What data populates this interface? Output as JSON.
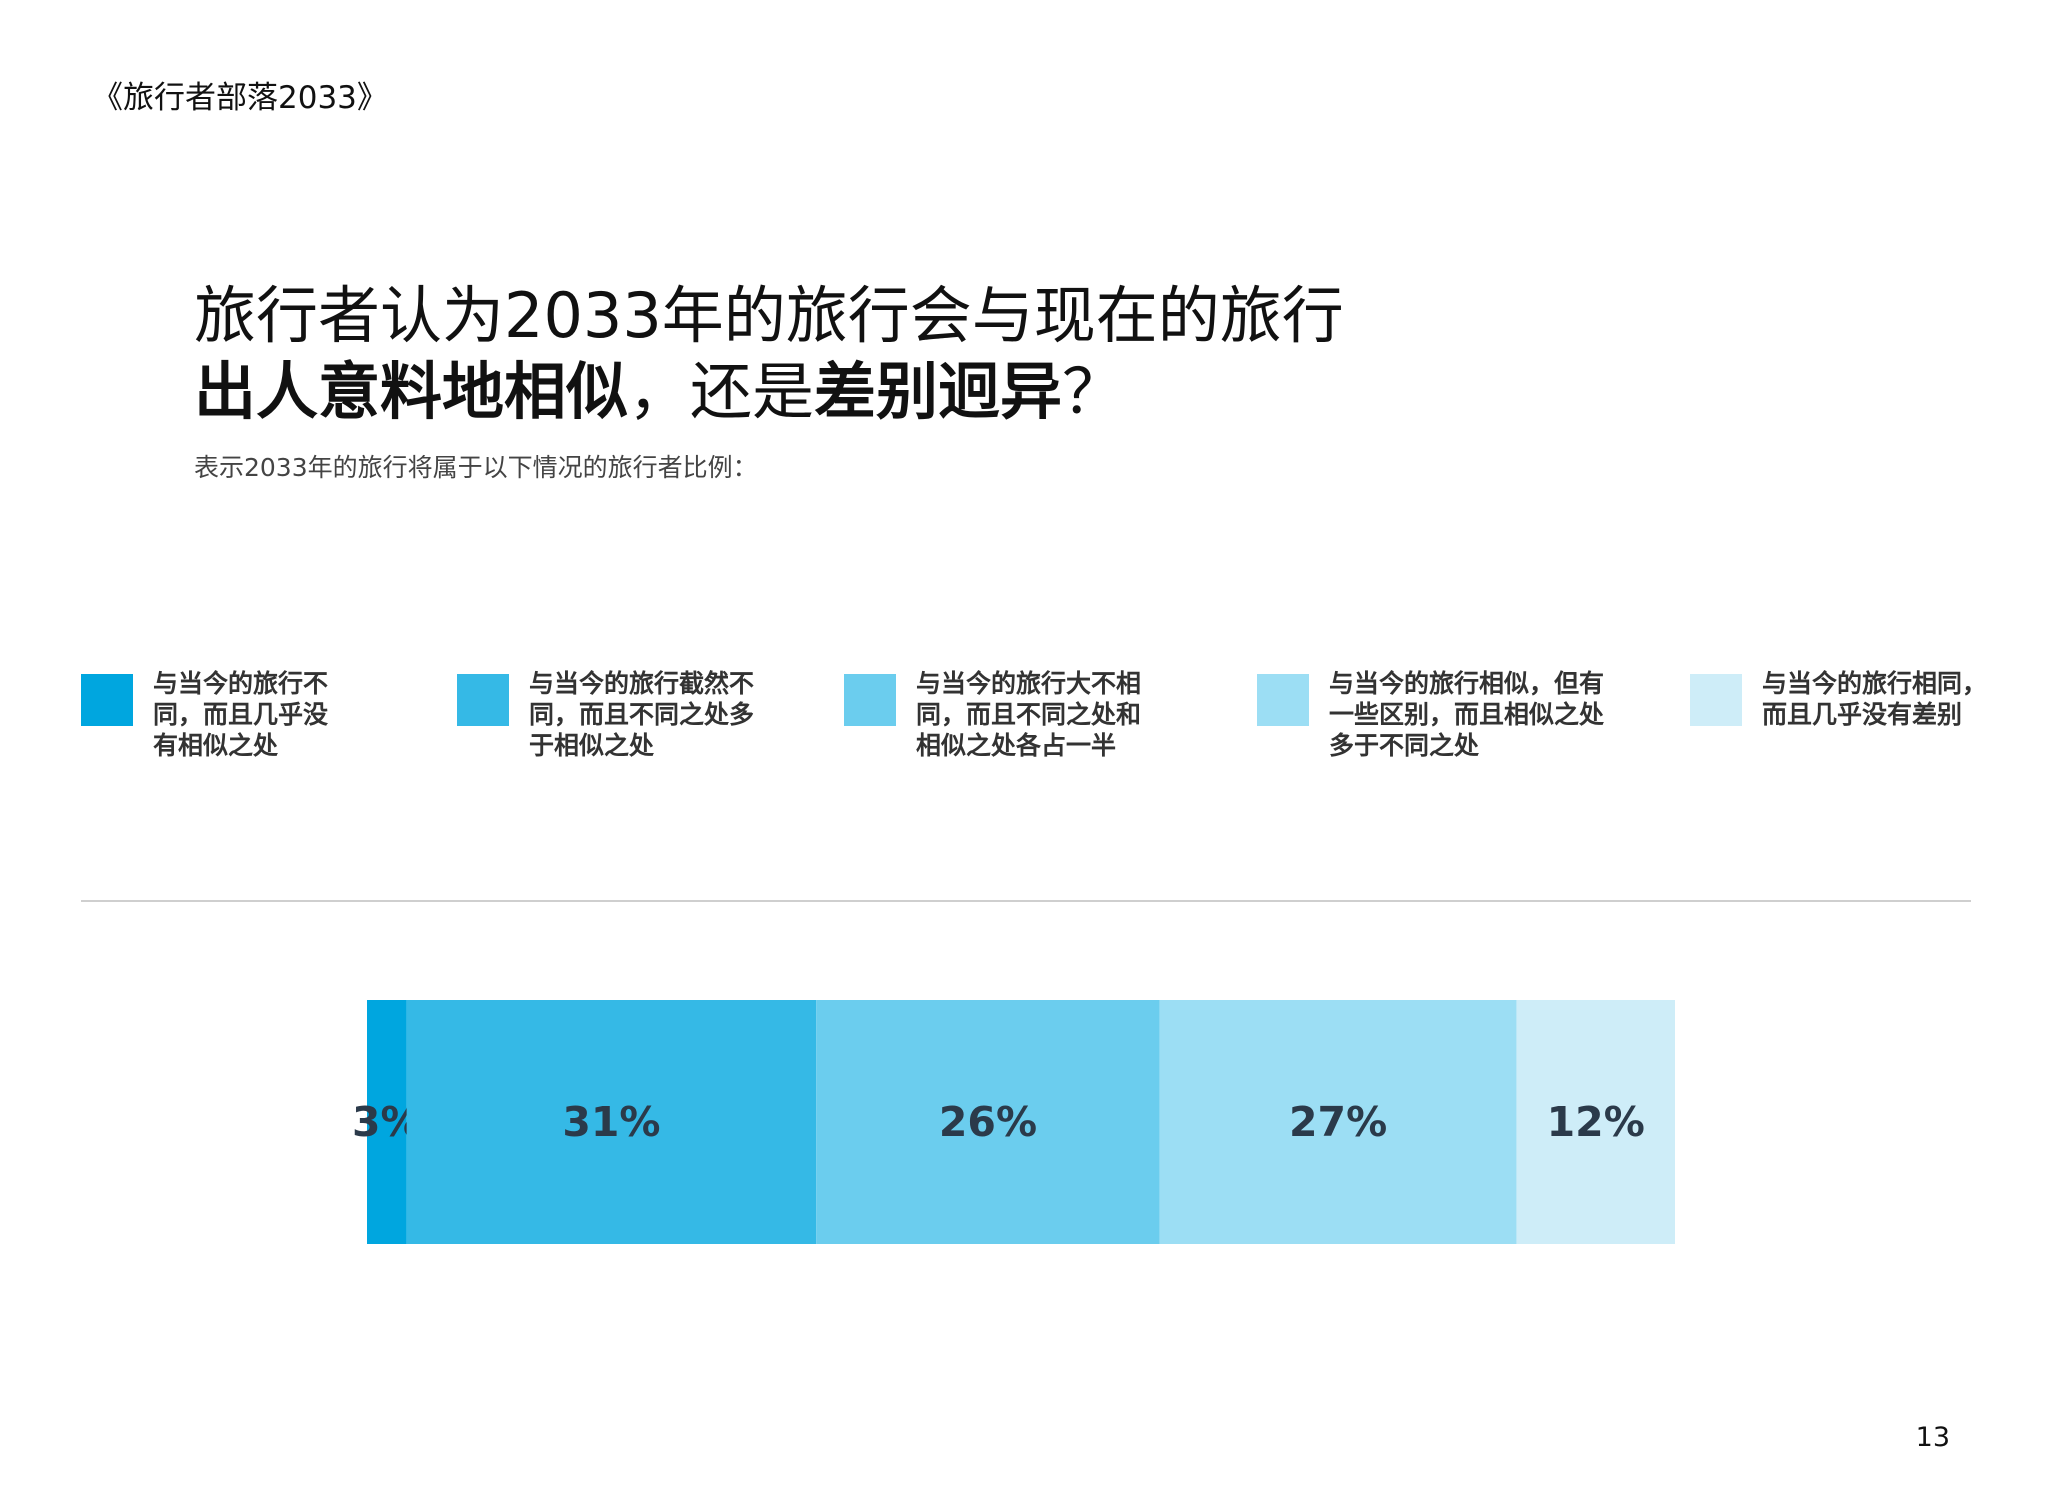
{
  "header": "《旅行者部落2033》",
  "title": {
    "line1": "旅行者认为2033年的旅行会与现在的旅行",
    "line2_bold_a": "出人意料地相似",
    "line2_regular": "，还是",
    "line2_bold_b": "差别迥异",
    "line2_end": "？"
  },
  "subtitle": "表示2033年的旅行将属于以下情况的旅行者比例：",
  "page_number": "13",
  "legend": [
    {
      "lines": [
        "与当今的旅行不",
        "同，而且几乎没",
        "有相似之处"
      ],
      "color": "#00a6df"
    },
    {
      "lines": [
        "与当今的旅行截然不",
        "同，而且不同之处多",
        "于相似之处"
      ],
      "color": "#35b9e6"
    },
    {
      "lines": [
        "与当今的旅行大不相",
        "同，而且不同之处和",
        "相似之处各占一半"
      ],
      "color": "#6bcdee"
    },
    {
      "lines": [
        "与当今的旅行相似，但有",
        "一些区别，而且相似之处",
        "多于不同之处"
      ],
      "color": "#9cdef4"
    },
    {
      "lines": [
        "与当今的旅行相同，",
        "而且几乎没有差别"
      ],
      "color": "#ceedf8"
    }
  ],
  "chart_data": {
    "type": "bar",
    "orientation": "horizontal-stacked-100",
    "categories": [
      "与当今的旅行不同，而且几乎没有相似之处",
      "与当今的旅行截然不同，而且不同之处多于相似之处",
      "与当今的旅行大不相同，而且不同之处和相似之处各占一半",
      "与当今的旅行相似，但有一些区别，而且相似之处多于不同之处",
      "与当今的旅行相同，而且几乎没有差别"
    ],
    "values": [
      3,
      31,
      26,
      27,
      12
    ],
    "labels": [
      "3%",
      "31%",
      "26%",
      "27%",
      "12%"
    ],
    "colors": [
      "#00a6df",
      "#35b9e6",
      "#6bcdee",
      "#9cdef4",
      "#ceedf8"
    ],
    "label_color": "#2b3a4a",
    "grid": false
  }
}
